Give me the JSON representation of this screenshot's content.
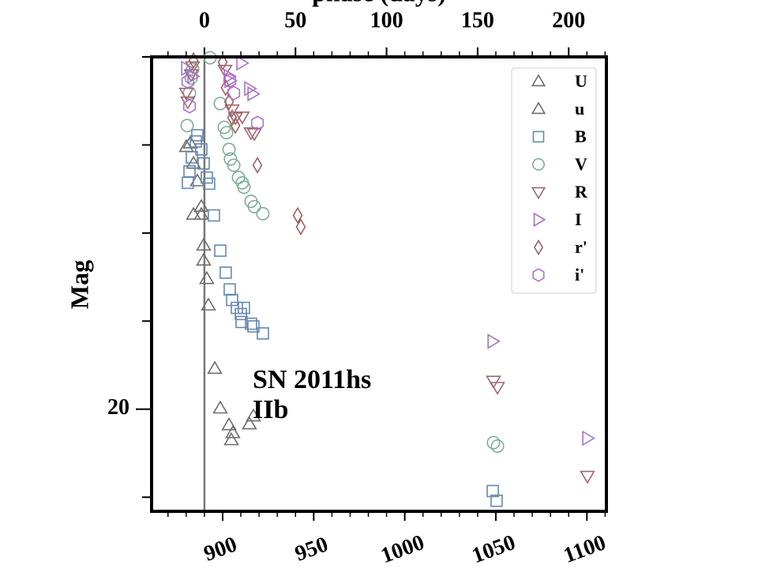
{
  "chart_data": {
    "type": "scatter",
    "xlabel_top": "phase (days)",
    "ylabel": "Mag",
    "annotation_lines": [
      "SN 2011hs",
      "IIb"
    ],
    "xlim": [
      861,
      1110.7
    ],
    "xticks": [
      900,
      950,
      1000,
      1050,
      1100
    ],
    "x_minor_step": 10,
    "x2lim": [
      -29,
      220.7
    ],
    "x2ticks": [
      0,
      50,
      100,
      150,
      200
    ],
    "x2_minor_step": 10,
    "ylim": [
      21.16,
      16.0
    ],
    "yticks": [
      20
    ],
    "y_minor_ticks": [
      16,
      17,
      18,
      19,
      21
    ],
    "vline_x": 890,
    "vline_color": "#777777",
    "legend": "upper right",
    "series": [
      {
        "name": "U",
        "marker": "triangle-up",
        "color": "#6e6e6e",
        "x": [
          880.1,
          882.2,
          884.0,
          886.1,
          884.0,
          888.3,
          888.3,
          889.6,
          889.6,
          891.3,
          892.2
        ],
        "values": [
          17.02,
          16.98,
          17.21,
          17.41,
          17.79,
          17.7,
          17.79,
          18.14,
          18.31,
          18.52,
          18.82
        ]
      },
      {
        "name": "u",
        "marker": "triangle-up",
        "color": "#6e6e6e",
        "x": [
          895.7,
          898.7,
          903.5,
          905.6,
          904.8,
          914.7,
          916.9
        ],
        "values": [
          19.54,
          19.99,
          20.18,
          20.27,
          20.35,
          20.17,
          20.08
        ]
      },
      {
        "name": "B",
        "marker": "square",
        "color": "#6688b0",
        "x": [
          880.9,
          881.8,
          883.1,
          885.3,
          886.1,
          888.3,
          889.6,
          891.3,
          892.6,
          895.2,
          898.7,
          901.7,
          903.9,
          905.2,
          907.8,
          910.0,
          911.7,
          910.4,
          915.6,
          916.9,
          922.1,
          1048.3,
          1050.4
        ],
        "values": [
          17.43,
          17.3,
          17.14,
          16.96,
          16.89,
          17.05,
          17.21,
          17.37,
          17.44,
          17.8,
          18.2,
          18.45,
          18.64,
          18.76,
          18.85,
          18.92,
          18.85,
          19.01,
          19.03,
          19.06,
          19.14,
          20.93,
          21.04
        ]
      },
      {
        "name": "V",
        "marker": "circle",
        "color": "#7fae92",
        "x": [
          880.5,
          881.8,
          882.7,
          883.5,
          893.1,
          898.7,
          900.9,
          902.2,
          903.5,
          904.3,
          906.1,
          908.7,
          910.8,
          911.7,
          915.6,
          917.4,
          922.1,
          1048.7,
          1050.9
        ],
        "values": [
          16.78,
          16.41,
          16.24,
          16.14,
          16.01,
          16.53,
          16.8,
          16.86,
          17.05,
          17.16,
          17.23,
          17.37,
          17.43,
          17.48,
          17.64,
          17.7,
          17.78,
          20.38,
          20.42
        ]
      },
      {
        "name": "R",
        "marker": "triangle-down",
        "color": "#a0686e",
        "x": [
          880.1,
          880.9,
          882.7,
          883.5,
          901.3,
          905.2,
          907.0,
          910.8,
          915.6,
          917.4,
          1048.7,
          1050.9,
          1100.3
        ],
        "values": [
          16.41,
          16.51,
          16.2,
          16.11,
          16.15,
          16.6,
          16.69,
          16.68,
          16.86,
          16.87,
          19.68,
          19.75,
          20.76
        ]
      },
      {
        "name": "I",
        "marker": "triangle-right",
        "color": "#a872c4",
        "x": [
          880.1,
          883.5,
          910.4,
          903.5,
          903.9,
          914.7,
          916.5,
          1048.3,
          1100.3
        ],
        "values": [
          16.13,
          16.22,
          16.07,
          16.22,
          16.27,
          16.36,
          16.42,
          19.23,
          20.33
        ]
      },
      {
        "name": "r'",
        "marker": "diamond",
        "color": "#a06262",
        "x": [
          884.0,
          900.0,
          901.7,
          903.5,
          905.2,
          907.0,
          919.1,
          941.2,
          942.9
        ],
        "values": [
          16.04,
          16.06,
          16.35,
          16.51,
          16.69,
          16.78,
          17.23,
          17.8,
          17.93
        ]
      },
      {
        "name": "i'",
        "marker": "hexagon",
        "color": "#b070d0",
        "x": [
          880.9,
          881.8,
          903.9,
          906.1,
          919.1
        ],
        "values": [
          16.28,
          16.56,
          16.27,
          16.41,
          16.75
        ]
      }
    ]
  }
}
